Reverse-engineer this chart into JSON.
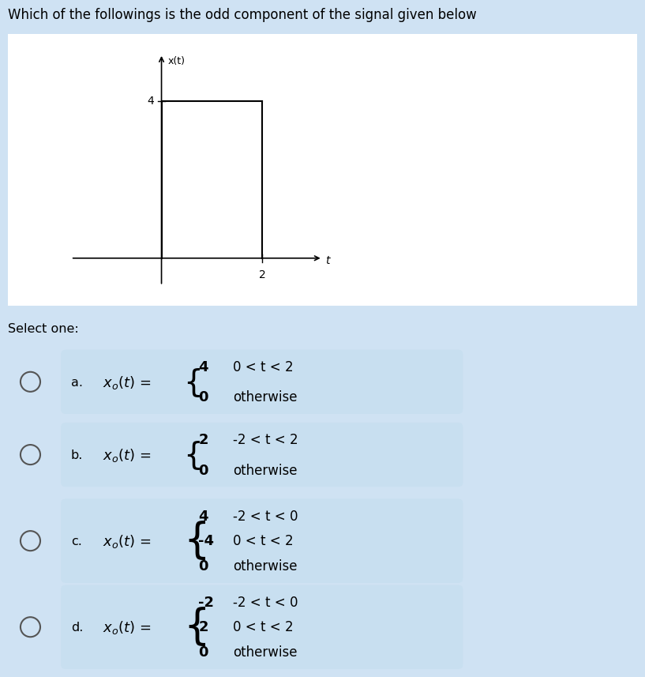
{
  "title": "Which of the followings is the odd component of the signal given below",
  "title_fontsize": 12,
  "bg_color": "#cfe2f3",
  "graph_bg": "#ffffff",
  "graph_panel_bg": "#ddeef8",
  "option_box_bg": "#c8dff0",
  "select_text": "Select one:",
  "options": [
    {
      "label": "a.",
      "cases": [
        {
          "val": "4",
          "cond": "0 < t < 2"
        },
        {
          "val": "0",
          "cond": "otherwise"
        }
      ]
    },
    {
      "label": "b.",
      "cases": [
        {
          "val": "2",
          "cond": "-2 < t < 2"
        },
        {
          "val": "0",
          "cond": "otherwise"
        }
      ]
    },
    {
      "label": "c.",
      "cases": [
        {
          "val": "4",
          "cond": "-2 < t < 0"
        },
        {
          "val": "-4",
          "cond": "0 < t < 2"
        },
        {
          "val": "0",
          "cond": "otherwise"
        }
      ]
    },
    {
      "label": "d.",
      "cases": [
        {
          "val": "-2",
          "cond": "-2 < t < 0"
        },
        {
          "val": "2",
          "cond": "0 < t < 2"
        },
        {
          "val": "0",
          "cond": "otherwise"
        }
      ]
    }
  ],
  "signal_label": "x(t)",
  "t_label": "t",
  "y_tick_val": "4",
  "x_tick_val": "2",
  "axis_xlim": [
    -1.8,
    3.2
  ],
  "axis_ylim": [
    -0.7,
    5.2
  ]
}
